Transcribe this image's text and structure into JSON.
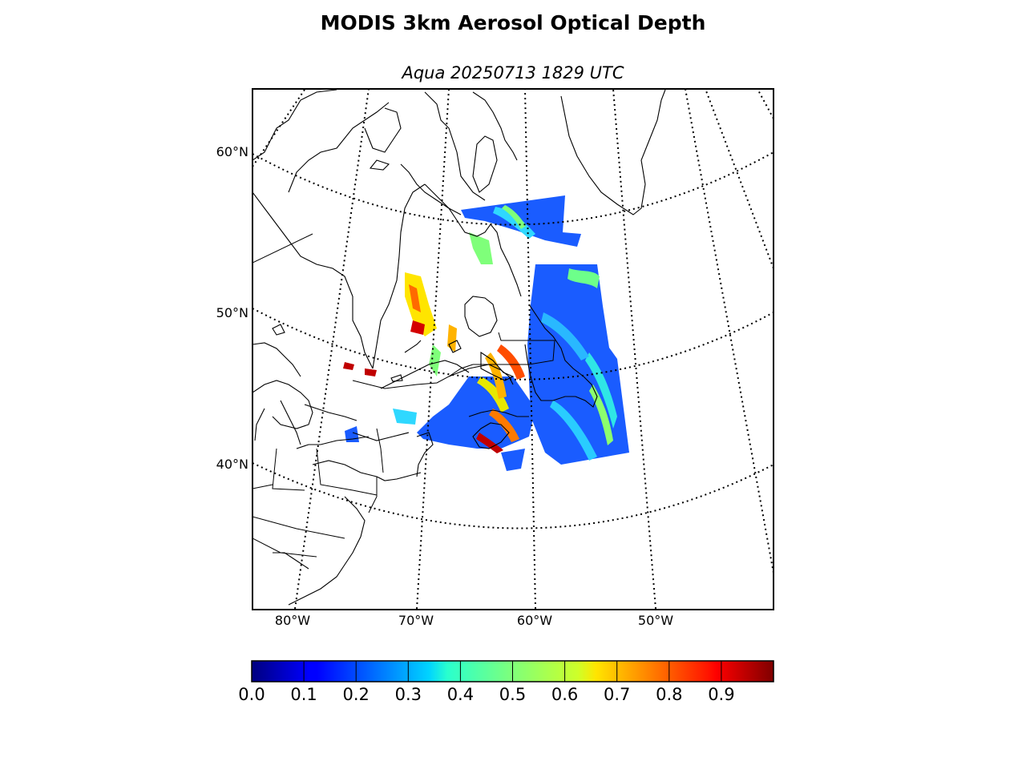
{
  "title": "MODIS 3km Aerosol Optical Depth",
  "subtitle": "Aqua 20250713 1829 UTC",
  "map": {
    "projection": "lambert-conic",
    "extent": {
      "lon_min": -83,
      "lon_max": -40,
      "lat_min": 30,
      "lat_max": 64
    },
    "graticule_style": "dotted",
    "lat_labels": [
      {
        "text": "60°N",
        "value": 60
      },
      {
        "text": "50°N",
        "value": 50
      },
      {
        "text": "40°N",
        "value": 40
      }
    ],
    "lon_labels": [
      {
        "text": "80°W",
        "value": -80
      },
      {
        "text": "70°W",
        "value": -70
      },
      {
        "text": "60°W",
        "value": -60
      },
      {
        "text": "50°W",
        "value": -50
      }
    ]
  },
  "chart_data": {
    "type": "heatmap",
    "title": "MODIS 3km Aerosol Optical Depth",
    "subtitle": "Aqua 20250713 1829 UTC",
    "variable": "Aerosol Optical Depth",
    "colormap": "jet",
    "range": [
      0.0,
      1.0
    ],
    "colorbar_ticks": [
      "0.0",
      "0.1",
      "0.2",
      "0.3",
      "0.4",
      "0.5",
      "0.6",
      "0.7",
      "0.8",
      "0.9"
    ]
  }
}
